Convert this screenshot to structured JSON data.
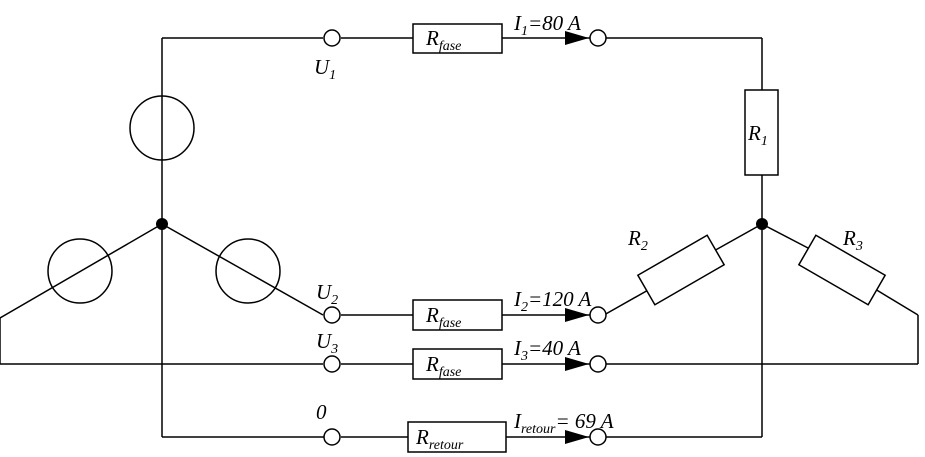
{
  "labels": {
    "u1": {
      "main": "U",
      "sub": "1"
    },
    "u2": {
      "main": "U",
      "sub": "2"
    },
    "u3": {
      "main": "U",
      "sub": "3"
    },
    "zero": "0",
    "r1": {
      "main": "R",
      "sub": "1"
    },
    "r2": {
      "main": "R",
      "sub": "2"
    },
    "r3": {
      "main": "R",
      "sub": "3"
    }
  },
  "resistors": {
    "fase1": {
      "main": "R",
      "sub": "fase"
    },
    "fase2": {
      "main": "R",
      "sub": "fase"
    },
    "fase3": {
      "main": "R",
      "sub": "fase"
    },
    "retour": {
      "main": "R",
      "sub": "retour"
    }
  },
  "currents": {
    "i1": {
      "main": "I",
      "sub": "1",
      "value": "=80 A"
    },
    "i2": {
      "main": "I",
      "sub": "2",
      "value": "=120 A"
    },
    "i3": {
      "main": "I",
      "sub": "3",
      "value": "=40 A"
    },
    "iretour": {
      "main": "I",
      "sub": "retour",
      "value": "= 69 A"
    }
  }
}
